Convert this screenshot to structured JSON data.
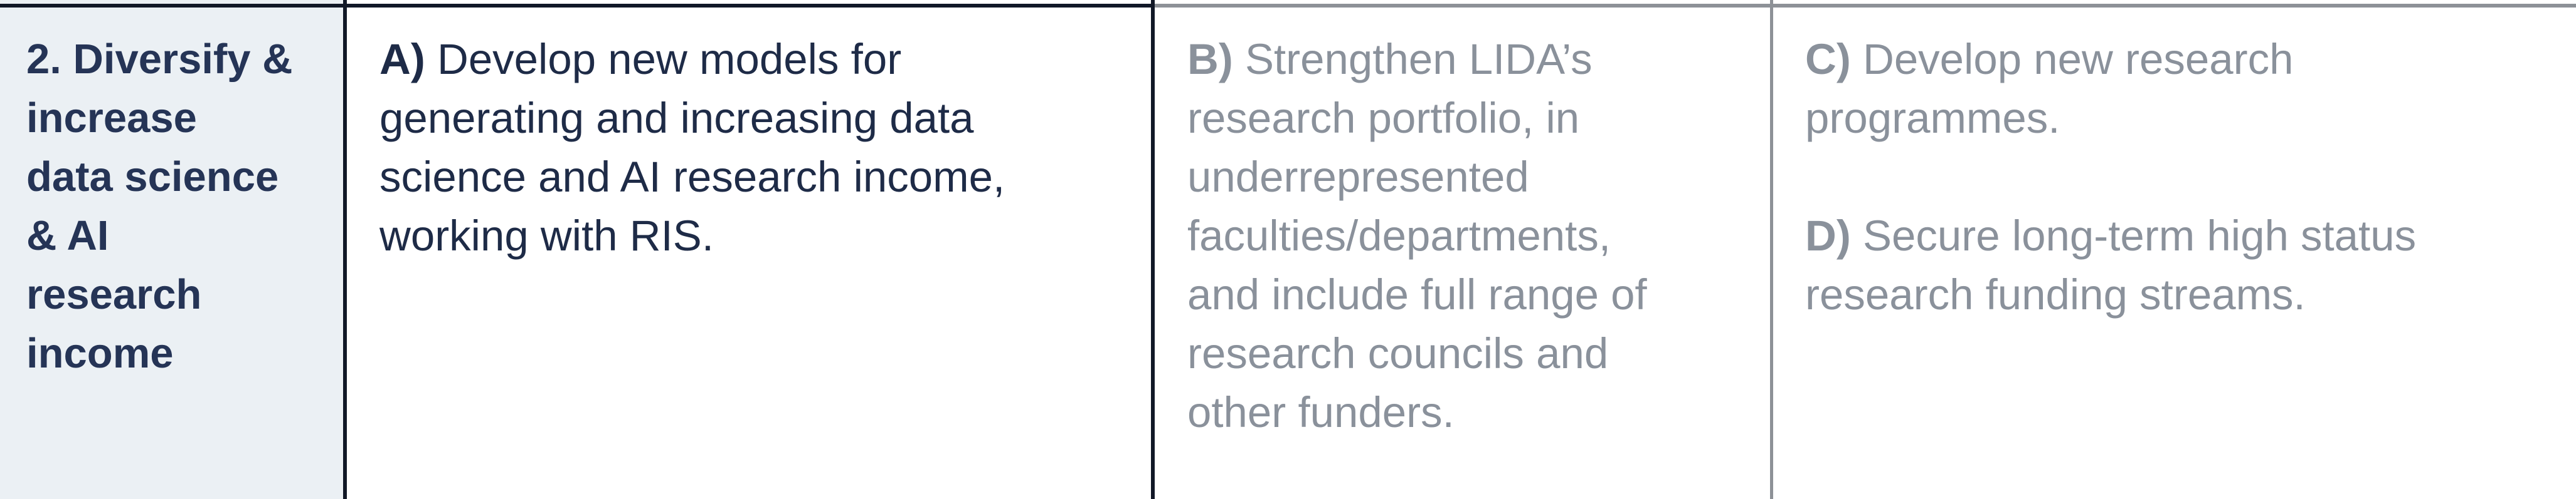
{
  "row": {
    "heading_lines": [
      "2. Diversify &",
      "increase",
      "data science",
      "& AI",
      "research",
      "income"
    ],
    "objective_a": {
      "letter": "A)",
      "first_line": " Develop new models for",
      "lines": [
        "generating and increasing data",
        "science and AI research income,",
        "working with RIS."
      ]
    },
    "objective_b": {
      "letter": "B)",
      "first_line": " Strengthen LIDA’s",
      "lines": [
        "research portfolio, in",
        "underrepresented",
        "faculties/departments,",
        "and include full range of",
        "research councils and",
        "other funders."
      ]
    },
    "objective_c": {
      "letter": "C)",
      "first_line": " Develop new research",
      "lines": [
        "programmes."
      ]
    },
    "objective_d": {
      "letter": "D)",
      "first_line": " Secure long-term high status",
      "lines": [
        "research funding streams."
      ]
    }
  },
  "colors": {
    "heading_bg": "#ebf0f4",
    "heading_text": "#253456",
    "active_text": "#1e2b47",
    "muted_text": "#8a919b",
    "dark_border": "#111827",
    "grey_border": "#8d9197"
  }
}
